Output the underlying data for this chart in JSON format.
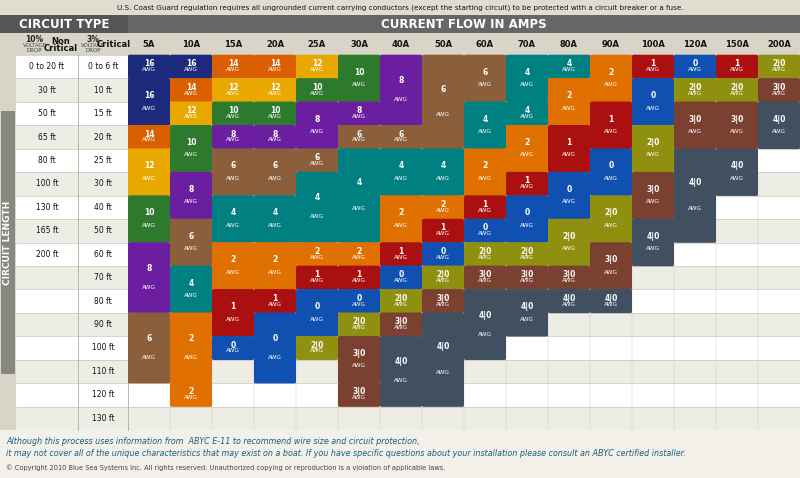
{
  "title_note": "U.S. Coast Guard regulation requires all ungrounded current carrying conductors (except the starting circuit) to be protected with a circuit breaker or a fuse.",
  "circuit_type_label": "CIRCUIT TYPE",
  "current_flow_label": "CURRENT FLOW IN AMPS",
  "circuit_length_label": "CIRCUIT LENGTH",
  "footnote1": "Although this process uses information from  ABYC E-11 to recommend wire size and circuit protection,",
  "footnote2": "it may not cover all of the unique characteristics that may exist on a boat. If you have specific questions about your installation please consult an ABYC certified installer.",
  "copyright": "© Copyright 2010 Blue Sea Systems Inc. All rights reserved. Unauthorized copying or reproduction is a violation of applicable laws.",
  "amp_cols": [
    "5A",
    "10A",
    "15A",
    "20A",
    "25A",
    "30A",
    "40A",
    "50A",
    "60A",
    "70A",
    "80A",
    "90A",
    "100A",
    "120A",
    "150A",
    "200A"
  ],
  "non_critical_rows": [
    "0 to 20 ft",
    "30 ft",
    "50 ft",
    "65 ft",
    "80 ft",
    "100 ft",
    "130 ft",
    "165 ft",
    "200 ft",
    "",
    "",
    "",
    "",
    "",
    "",
    ""
  ],
  "critical_rows": [
    "0 to 6 ft",
    "10 ft",
    "15 ft",
    "20 ft",
    "25 ft",
    "30 ft",
    "40 ft",
    "50 ft",
    "60 ft",
    "70 ft",
    "80 ft",
    "90 ft",
    "100 ft",
    "110 ft",
    "120 ft",
    "130 ft"
  ],
  "colors": {
    "16": "#1b2a7a",
    "14": "#d95f00",
    "12": "#e8a800",
    "10": "#2d7a2d",
    "8": "#6b1fa0",
    "6": "#8b5e3c",
    "4": "#008080",
    "2": "#e07000",
    "1": "#aa1010",
    "0": "#1050b0",
    "20": "#909010",
    "30": "#7a4030",
    "40": "#405060"
  },
  "cells_by_col": [
    [
      {
        "label": "16\nAWG",
        "color": "#1b2a7a",
        "row": 0,
        "rows": 1
      },
      {
        "label": "16\nAWG",
        "color": "#1b2a7a",
        "row": 1,
        "rows": 2
      },
      {
        "label": "14\nAWG",
        "color": "#d95f00",
        "row": 3,
        "rows": 1
      },
      {
        "label": "12\nAWG",
        "color": "#e8a800",
        "row": 4,
        "rows": 2
      },
      {
        "label": "10\nAWG",
        "color": "#2d7a2d",
        "row": 6,
        "rows": 2
      },
      {
        "label": "8\nAWG",
        "color": "#6b1fa0",
        "row": 8,
        "rows": 3
      },
      {
        "label": "6\nAWG",
        "color": "#8b5e3c",
        "row": 11,
        "rows": 3
      }
    ],
    [
      {
        "label": "16\nAWG",
        "color": "#1b2a7a",
        "row": 0,
        "rows": 1
      },
      {
        "label": "14\nAWG",
        "color": "#d95f00",
        "row": 1,
        "rows": 1
      },
      {
        "label": "12\nAWG",
        "color": "#e8a800",
        "row": 2,
        "rows": 1
      },
      {
        "label": "10\nAWG",
        "color": "#2d7a2d",
        "row": 3,
        "rows": 2
      },
      {
        "label": "8\nAWG",
        "color": "#6b1fa0",
        "row": 5,
        "rows": 2
      },
      {
        "label": "6\nAWG",
        "color": "#8b5e3c",
        "row": 7,
        "rows": 2
      },
      {
        "label": "4\nAWG",
        "color": "#008080",
        "row": 9,
        "rows": 2
      },
      {
        "label": "2\nAWG",
        "color": "#e07000",
        "row": 11,
        "rows": 3
      },
      {
        "label": "2\nAWG",
        "color": "#e07000",
        "row": 14,
        "rows": 1
      }
    ],
    [
      {
        "label": "14\nAWG",
        "color": "#d95f00",
        "row": 0,
        "rows": 1
      },
      {
        "label": "12\nAWG",
        "color": "#e8a800",
        "row": 1,
        "rows": 1
      },
      {
        "label": "10\nAWG",
        "color": "#2d7a2d",
        "row": 2,
        "rows": 1
      },
      {
        "label": "8\nAWG",
        "color": "#6b1fa0",
        "row": 3,
        "rows": 1
      },
      {
        "label": "6\nAWG",
        "color": "#8b5e3c",
        "row": 4,
        "rows": 2
      },
      {
        "label": "4\nAWG",
        "color": "#008080",
        "row": 6,
        "rows": 2
      },
      {
        "label": "2\nAWG",
        "color": "#e07000",
        "row": 8,
        "rows": 2
      },
      {
        "label": "1\nAWG",
        "color": "#aa1010",
        "row": 10,
        "rows": 2
      },
      {
        "label": "0\nAWG",
        "color": "#1050b0",
        "row": 12,
        "rows": 1
      }
    ],
    [
      {
        "label": "14\nAWG",
        "color": "#d95f00",
        "row": 0,
        "rows": 1
      },
      {
        "label": "12\nAWG",
        "color": "#e8a800",
        "row": 1,
        "rows": 1
      },
      {
        "label": "10\nAWG",
        "color": "#2d7a2d",
        "row": 2,
        "rows": 1
      },
      {
        "label": "8\nAWG",
        "color": "#6b1fa0",
        "row": 3,
        "rows": 1
      },
      {
        "label": "6\nAWG",
        "color": "#8b5e3c",
        "row": 4,
        "rows": 2
      },
      {
        "label": "4\nAWG",
        "color": "#008080",
        "row": 6,
        "rows": 2
      },
      {
        "label": "2\nAWG",
        "color": "#e07000",
        "row": 8,
        "rows": 2
      },
      {
        "label": "1\nAWG",
        "color": "#aa1010",
        "row": 10,
        "rows": 1
      },
      {
        "label": "0\nAWG",
        "color": "#1050b0",
        "row": 11,
        "rows": 3
      }
    ],
    [
      {
        "label": "12\nAWG",
        "color": "#e8a800",
        "row": 0,
        "rows": 1
      },
      {
        "label": "10\nAWG",
        "color": "#2d7a2d",
        "row": 1,
        "rows": 1
      },
      {
        "label": "8\nAWG",
        "color": "#6b1fa0",
        "row": 2,
        "rows": 2
      },
      {
        "label": "6\nAWG",
        "color": "#8b5e3c",
        "row": 4,
        "rows": 1
      },
      {
        "label": "4\nAWG",
        "color": "#008080",
        "row": 5,
        "rows": 3
      },
      {
        "label": "2\nAWG",
        "color": "#e07000",
        "row": 8,
        "rows": 1
      },
      {
        "label": "1\nAWG",
        "color": "#aa1010",
        "row": 9,
        "rows": 1
      },
      {
        "label": "0\nAWG",
        "color": "#1050b0",
        "row": 10,
        "rows": 2
      },
      {
        "label": "2|0\nAWG",
        "color": "#909010",
        "row": 12,
        "rows": 1
      }
    ],
    [
      {
        "label": "10\nAWG",
        "color": "#2d7a2d",
        "row": 0,
        "rows": 2
      },
      {
        "label": "8\nAWG",
        "color": "#6b1fa0",
        "row": 2,
        "rows": 1
      },
      {
        "label": "6\nAWG",
        "color": "#8b5e3c",
        "row": 3,
        "rows": 1
      },
      {
        "label": "4\nAWG",
        "color": "#008080",
        "row": 4,
        "rows": 4
      },
      {
        "label": "2\nAWG",
        "color": "#e07000",
        "row": 8,
        "rows": 1
      },
      {
        "label": "1\nAWG",
        "color": "#aa1010",
        "row": 9,
        "rows": 1
      },
      {
        "label": "0\nAWG",
        "color": "#1050b0",
        "row": 10,
        "rows": 1
      },
      {
        "label": "2|0\nAWG",
        "color": "#909010",
        "row": 11,
        "rows": 1
      },
      {
        "label": "3|0\nAWG",
        "color": "#7a4030",
        "row": 12,
        "rows": 2
      },
      {
        "label": "3|0\nAWG",
        "color": "#7a4030",
        "row": 14,
        "rows": 1
      }
    ],
    [
      {
        "label": "8\nAWG",
        "color": "#6b1fa0",
        "row": 0,
        "rows": 3
      },
      {
        "label": "6\nAWG",
        "color": "#8b5e3c",
        "row": 3,
        "rows": 1
      },
      {
        "label": "4\nAWG",
        "color": "#008080",
        "row": 4,
        "rows": 2
      },
      {
        "label": "2\nAWG",
        "color": "#e07000",
        "row": 6,
        "rows": 2
      },
      {
        "label": "1\nAWG",
        "color": "#aa1010",
        "row": 8,
        "rows": 1
      },
      {
        "label": "0\nAWG",
        "color": "#1050b0",
        "row": 9,
        "rows": 1
      },
      {
        "label": "2|0\nAWG",
        "color": "#909010",
        "row": 10,
        "rows": 1
      },
      {
        "label": "3|0\nAWG",
        "color": "#7a4030",
        "row": 11,
        "rows": 1
      },
      {
        "label": "4|0\nAWG",
        "color": "#405060",
        "row": 12,
        "rows": 3
      }
    ],
    [
      {
        "label": "6\nAWG",
        "color": "#8b5e3c",
        "row": 0,
        "rows": 4
      },
      {
        "label": "4\nAWG",
        "color": "#008080",
        "row": 4,
        "rows": 2
      },
      {
        "label": "2\nAWG",
        "color": "#e07000",
        "row": 6,
        "rows": 1
      },
      {
        "label": "1\nAWG",
        "color": "#aa1010",
        "row": 7,
        "rows": 1
      },
      {
        "label": "0\nAWG",
        "color": "#1050b0",
        "row": 8,
        "rows": 1
      },
      {
        "label": "2|0\nAWG",
        "color": "#909010",
        "row": 9,
        "rows": 1
      },
      {
        "label": "3|0\nAWG",
        "color": "#7a4030",
        "row": 10,
        "rows": 1
      },
      {
        "label": "4|0\nAWG",
        "color": "#405060",
        "row": 11,
        "rows": 4
      }
    ],
    [
      {
        "label": "6\nAWG",
        "color": "#8b5e3c",
        "row": 0,
        "rows": 2
      },
      {
        "label": "4\nAWG",
        "color": "#008080",
        "row": 2,
        "rows": 2
      },
      {
        "label": "2\nAWG",
        "color": "#e07000",
        "row": 4,
        "rows": 2
      },
      {
        "label": "1\nAWG",
        "color": "#aa1010",
        "row": 6,
        "rows": 1
      },
      {
        "label": "0\nAWG",
        "color": "#1050b0",
        "row": 7,
        "rows": 1
      },
      {
        "label": "2|0\nAWG",
        "color": "#909010",
        "row": 8,
        "rows": 1
      },
      {
        "label": "3|0\nAWG",
        "color": "#7a4030",
        "row": 9,
        "rows": 1
      },
      {
        "label": "4|0\nAWG",
        "color": "#405060",
        "row": 10,
        "rows": 3
      }
    ],
    [
      {
        "label": "4\nAWG",
        "color": "#008080",
        "row": 0,
        "rows": 2
      },
      {
        "label": "4\nAWG",
        "color": "#008080",
        "row": 2,
        "rows": 1
      },
      {
        "label": "2\nAWG",
        "color": "#e07000",
        "row": 3,
        "rows": 2
      },
      {
        "label": "1\nAWG",
        "color": "#aa1010",
        "row": 5,
        "rows": 1
      },
      {
        "label": "0\nAWG",
        "color": "#1050b0",
        "row": 6,
        "rows": 2
      },
      {
        "label": "2|0\nAWG",
        "color": "#909010",
        "row": 8,
        "rows": 1
      },
      {
        "label": "3|0\nAWG",
        "color": "#7a4030",
        "row": 9,
        "rows": 1
      },
      {
        "label": "4|0\nAWG",
        "color": "#405060",
        "row": 10,
        "rows": 2
      }
    ],
    [
      {
        "label": "4\nAWG",
        "color": "#008080",
        "row": 0,
        "rows": 1
      },
      {
        "label": "2\nAWG",
        "color": "#e07000",
        "row": 1,
        "rows": 2
      },
      {
        "label": "1\nAWG",
        "color": "#aa1010",
        "row": 3,
        "rows": 2
      },
      {
        "label": "0\nAWG",
        "color": "#1050b0",
        "row": 5,
        "rows": 2
      },
      {
        "label": "2|0\nAWG",
        "color": "#909010",
        "row": 7,
        "rows": 2
      },
      {
        "label": "3|0\nAWG",
        "color": "#7a4030",
        "row": 9,
        "rows": 1
      },
      {
        "label": "4|0\nAWG",
        "color": "#405060",
        "row": 10,
        "rows": 1
      }
    ],
    [
      {
        "label": "2\nAWG",
        "color": "#e07000",
        "row": 0,
        "rows": 2
      },
      {
        "label": "1\nAWG",
        "color": "#aa1010",
        "row": 2,
        "rows": 2
      },
      {
        "label": "0\nAWG",
        "color": "#1050b0",
        "row": 4,
        "rows": 2
      },
      {
        "label": "2|0\nAWG",
        "color": "#909010",
        "row": 6,
        "rows": 2
      },
      {
        "label": "3|0\nAWG",
        "color": "#7a4030",
        "row": 8,
        "rows": 2
      },
      {
        "label": "4|0\nAWG",
        "color": "#405060",
        "row": 10,
        "rows": 1
      }
    ],
    [
      {
        "label": "1\nAWG",
        "color": "#aa1010",
        "row": 0,
        "rows": 1
      },
      {
        "label": "0\nAWG",
        "color": "#1050b0",
        "row": 1,
        "rows": 2
      },
      {
        "label": "2|0\nAWG",
        "color": "#909010",
        "row": 3,
        "rows": 2
      },
      {
        "label": "3|0\nAWG",
        "color": "#7a4030",
        "row": 5,
        "rows": 2
      },
      {
        "label": "4|0\nAWG",
        "color": "#405060",
        "row": 7,
        "rows": 2
      }
    ],
    [
      {
        "label": "0\nAWG",
        "color": "#1050b0",
        "row": 0,
        "rows": 1
      },
      {
        "label": "2|0\nAWG",
        "color": "#909010",
        "row": 1,
        "rows": 1
      },
      {
        "label": "3|0\nAWG",
        "color": "#7a4030",
        "row": 2,
        "rows": 2
      },
      {
        "label": "4|0\nAWG",
        "color": "#405060",
        "row": 4,
        "rows": 4
      }
    ],
    [
      {
        "label": "1\nAWG",
        "color": "#aa1010",
        "row": 0,
        "rows": 1
      },
      {
        "label": "2|0\nAWG",
        "color": "#909010",
        "row": 1,
        "rows": 1
      },
      {
        "label": "3|0\nAWG",
        "color": "#7a4030",
        "row": 2,
        "rows": 2
      },
      {
        "label": "4|0\nAWG",
        "color": "#405060",
        "row": 4,
        "rows": 2
      }
    ],
    [
      {
        "label": "2|0\nAWG",
        "color": "#909010",
        "row": 0,
        "rows": 1
      },
      {
        "label": "3|0\nAWG",
        "color": "#7a4030",
        "row": 1,
        "rows": 1
      },
      {
        "label": "4|0\nAWG",
        "color": "#405060",
        "row": 2,
        "rows": 2
      }
    ]
  ]
}
